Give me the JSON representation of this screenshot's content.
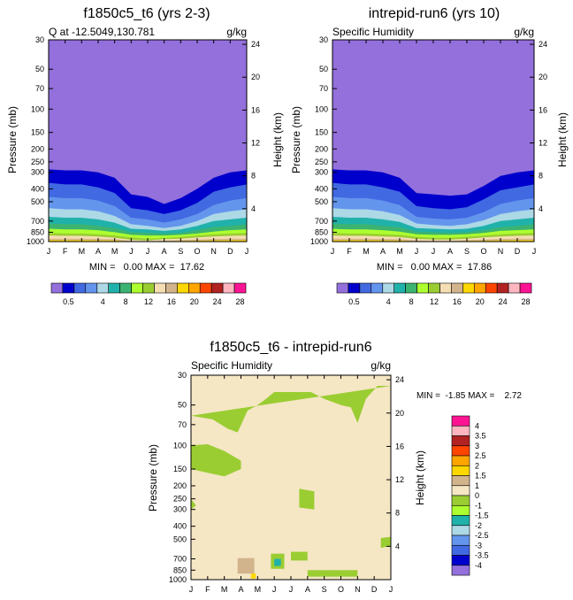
{
  "colors": {
    "q_levels": [
      "#9370db",
      "#0000cd",
      "#4169e1",
      "#6495ed",
      "#add8e6",
      "#20b2aa",
      "#3cb371",
      "#adff2f",
      "#9acd32",
      "#f5deb3",
      "#d2b48c",
      "#ffd700",
      "#ffa500",
      "#ff4500",
      "#b22222",
      "#ffb6c1",
      "#ff1493"
    ],
    "diff_levels": [
      "#9370db",
      "#0000cd",
      "#4169e1",
      "#6495ed",
      "#add8e6",
      "#20b2aa",
      "#adff2f",
      "#9acd32",
      "#f5e6c4",
      "#d2b48c",
      "#ffd700",
      "#ffa500",
      "#ff4500",
      "#b22222",
      "#ffb6c1",
      "#ff1493"
    ]
  },
  "chart_data": [
    {
      "type": "contour",
      "title": "f1850c5_t6 (yrs 2-3)",
      "left_string": "Q at -12.5049,130.781",
      "right_string": "g/kg",
      "ylabel": "Pressure (mb)",
      "y2label": "Height (km)",
      "x_ticks": [
        "J",
        "F",
        "M",
        "A",
        "M",
        "J",
        "J",
        "A",
        "S",
        "O",
        "N",
        "D",
        "J"
      ],
      "p_ticks": [
        30,
        50,
        70,
        100,
        150,
        200,
        250,
        300,
        400,
        500,
        700,
        850,
        1000
      ],
      "z_ticks": [
        24,
        20,
        16,
        12,
        8,
        4
      ],
      "stats": "MIN =   0.00 MAX =  17.62",
      "colorbar_labels": [
        "0.5",
        "4",
        "8",
        "12",
        "16",
        "20",
        "24",
        "28"
      ],
      "band_tops_mb": {
        "months": [
          1,
          2,
          3,
          4,
          5,
          6,
          7,
          8,
          9,
          10,
          11,
          12,
          13
        ],
        "levels": [
          "0.5",
          "1",
          "2",
          "3",
          "4",
          "6",
          "8",
          "10",
          "12",
          "14",
          "16"
        ],
        "tops": [
          [
            285,
            290,
            290,
            300,
            330,
            440,
            460,
            520,
            470,
            400,
            330,
            300,
            290
          ],
          [
            360,
            370,
            370,
            390,
            430,
            560,
            580,
            620,
            580,
            510,
            420,
            390,
            370
          ],
          [
            460,
            470,
            470,
            490,
            540,
            660,
            680,
            720,
            680,
            620,
            530,
            490,
            470
          ],
          [
            560,
            570,
            570,
            590,
            640,
            740,
            760,
            790,
            760,
            700,
            620,
            590,
            570
          ],
          [
            650,
            660,
            660,
            680,
            720,
            800,
            810,
            830,
            810,
            760,
            700,
            680,
            660
          ],
          [
            730,
            740,
            740,
            760,
            790,
            850,
            860,
            870,
            860,
            820,
            780,
            760,
            740
          ],
          [
            800,
            810,
            810,
            820,
            850,
            890,
            900,
            900,
            890,
            870,
            840,
            820,
            810
          ],
          [
            860,
            870,
            870,
            880,
            900,
            930,
            950,
            940,
            920,
            900,
            880,
            870,
            860
          ],
          [
            900,
            905,
            905,
            915,
            935,
            970,
            980,
            960,
            950,
            930,
            915,
            905,
            900
          ],
          [
            950,
            950,
            950,
            955,
            960,
            990,
            995,
            985,
            975,
            965,
            955,
            950,
            950
          ],
          [
            975,
            975,
            975,
            978,
            982,
            999,
            1000,
            995,
            990,
            985,
            978,
            975,
            975
          ]
        ]
      }
    },
    {
      "type": "contour",
      "title": "intrepid-run6 (yrs 10)",
      "left_string": "Specific Humidity",
      "right_string": "g/kg",
      "ylabel": "Pressure (mb)",
      "y2label": "Height (km)",
      "x_ticks": [
        "J",
        "F",
        "M",
        "A",
        "M",
        "J",
        "J",
        "A",
        "S",
        "O",
        "N",
        "D",
        "J"
      ],
      "p_ticks": [
        30,
        50,
        70,
        100,
        150,
        200,
        250,
        300,
        400,
        500,
        700,
        850,
        1000
      ],
      "z_ticks": [
        24,
        20,
        16,
        12,
        8,
        4
      ],
      "stats": "MIN =   0.00 MAX =  17.86",
      "colorbar_labels": [
        "0.5",
        "4",
        "8",
        "12",
        "16",
        "20",
        "24",
        "28"
      ],
      "band_tops_mb": {
        "months": [
          1,
          2,
          3,
          4,
          5,
          6,
          7,
          8,
          9,
          10,
          11,
          12,
          13
        ],
        "levels": [
          "0.5",
          "1",
          "2",
          "3",
          "4",
          "6",
          "8",
          "10",
          "12",
          "14",
          "16"
        ],
        "tops": [
          [
            285,
            290,
            290,
            300,
            330,
            430,
            440,
            450,
            440,
            380,
            320,
            300,
            290
          ],
          [
            360,
            370,
            370,
            390,
            420,
            540,
            560,
            570,
            550,
            480,
            410,
            390,
            370
          ],
          [
            460,
            470,
            470,
            490,
            530,
            650,
            670,
            680,
            660,
            600,
            520,
            490,
            470
          ],
          [
            560,
            570,
            570,
            590,
            630,
            730,
            750,
            760,
            740,
            690,
            620,
            590,
            570
          ],
          [
            650,
            660,
            660,
            680,
            710,
            790,
            800,
            810,
            800,
            760,
            700,
            680,
            660
          ],
          [
            730,
            740,
            740,
            760,
            780,
            840,
            850,
            860,
            850,
            820,
            780,
            760,
            740
          ],
          [
            800,
            810,
            810,
            820,
            840,
            880,
            890,
            890,
            880,
            860,
            830,
            820,
            810
          ],
          [
            860,
            870,
            870,
            880,
            890,
            920,
            935,
            935,
            920,
            900,
            880,
            870,
            860
          ],
          [
            900,
            905,
            905,
            915,
            925,
            955,
            965,
            965,
            950,
            930,
            915,
            905,
            900
          ],
          [
            950,
            950,
            950,
            955,
            960,
            980,
            990,
            990,
            975,
            965,
            955,
            950,
            950
          ],
          [
            975,
            975,
            975,
            978,
            982,
            995,
            1000,
            998,
            990,
            985,
            978,
            975,
            975
          ]
        ]
      }
    },
    {
      "type": "contour",
      "title": "f1850c5_t6 - intrepid-run6",
      "left_string": "Specific Humidity",
      "right_string": "g/kg",
      "ylabel": "Pressure (mb)",
      "y2label": "Height (km)",
      "x_ticks": [
        "J",
        "F",
        "M",
        "A",
        "M",
        "J",
        "J",
        "A",
        "S",
        "O",
        "N",
        "D",
        "J"
      ],
      "p_ticks": [
        30,
        50,
        70,
        100,
        150,
        200,
        250,
        300,
        400,
        500,
        700,
        850,
        1000
      ],
      "z_ticks": [
        24,
        20,
        16,
        12,
        8,
        4
      ],
      "stats": "MIN =  -1.85 MAX =    2.72",
      "colorbar_labels": [
        "4",
        "3.5",
        "3",
        "2.5",
        "2",
        "1.5",
        "1",
        "0",
        "-1",
        "-1.5",
        "-2",
        "-2.5",
        "-3",
        "-3.5",
        "-4"
      ],
      "regions": [
        {
          "level": "-1",
          "month": [
            1.0,
            2.3,
            3.2,
            3.8,
            4.4,
            5.0,
            5.5,
            6.0,
            6.7,
            7.4,
            8.2,
            9.0,
            10.0,
            10.6,
            11.0,
            11.5,
            12.2,
            13.0
          ],
          "p_mb": [
            60,
            64,
            75,
            80,
            55,
            50,
            45,
            40,
            40,
            40,
            40,
            45,
            50,
            52,
            68,
            45,
            36,
            36
          ]
        },
        {
          "level": "-1",
          "month": [
            1.0,
            2.0,
            3.0,
            4.0,
            4.0,
            3.0,
            2.0,
            1.0
          ],
          "p_mb": [
            100,
            98,
            110,
            130,
            150,
            170,
            160,
            150
          ]
        },
        {
          "level": "-1",
          "month": [
            7.5,
            8.4,
            8.4,
            7.5
          ],
          "p_mb": [
            210,
            220,
            300,
            290
          ]
        },
        {
          "level": "-1",
          "month": [
            1.0,
            1.3,
            1.0
          ],
          "p_mb": [
            250,
            280,
            300
          ]
        },
        {
          "level": "-1",
          "month": [
            12.4,
            13.0,
            13.0,
            12.4
          ],
          "p_mb": [
            490,
            480,
            560,
            580
          ]
        },
        {
          "level": "0",
          "month": [
            3.0,
            4.0,
            4.6,
            4.8,
            4.0,
            3.0
          ],
          "p_mb": [
            550,
            580,
            700,
            800,
            820,
            700
          ]
        },
        {
          "level": "1",
          "month": [
            3.8,
            4.8,
            4.8,
            3.8
          ],
          "p_mb": [
            690,
            690,
            900,
            900
          ]
        },
        {
          "level": "2",
          "month": [
            4.6,
            4.9,
            4.9,
            4.6
          ],
          "p_mb": [
            900,
            900,
            980,
            980
          ]
        },
        {
          "level": "-1",
          "month": [
            5.8,
            6.6,
            6.6,
            5.8
          ],
          "p_mb": [
            640,
            640,
            830,
            830
          ]
        },
        {
          "level": "-2",
          "month": [
            6.0,
            6.4,
            6.4,
            6.0
          ],
          "p_mb": [
            700,
            700,
            790,
            790
          ]
        },
        {
          "level": "-1",
          "month": [
            7.0,
            8.0,
            8.0,
            7.0
          ],
          "p_mb": [
            620,
            620,
            720,
            720
          ]
        },
        {
          "level": "-1",
          "month": [
            8.0,
            11.0,
            11.0,
            8.0
          ],
          "p_mb": [
            850,
            850,
            950,
            950
          ]
        }
      ]
    }
  ]
}
